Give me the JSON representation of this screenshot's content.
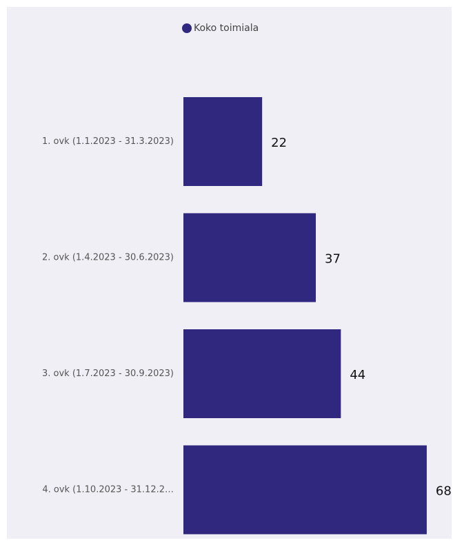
{
  "chart_data": {
    "type": "hbar",
    "categories": [
      "1. ovk (1.1.2023 - 31.3.2023)",
      "2. ovk (1.4.2023 - 30.6.2023)",
      "3. ovk (1.7.2023 - 30.9.2023)",
      "4. ovk (1.10.2023 - 31.12.2…"
    ],
    "series": [
      {
        "name": "Koko toimiala",
        "color": "#30277f",
        "values": [
          22,
          37,
          44,
          68
        ]
      }
    ],
    "legend": "top"
  }
}
